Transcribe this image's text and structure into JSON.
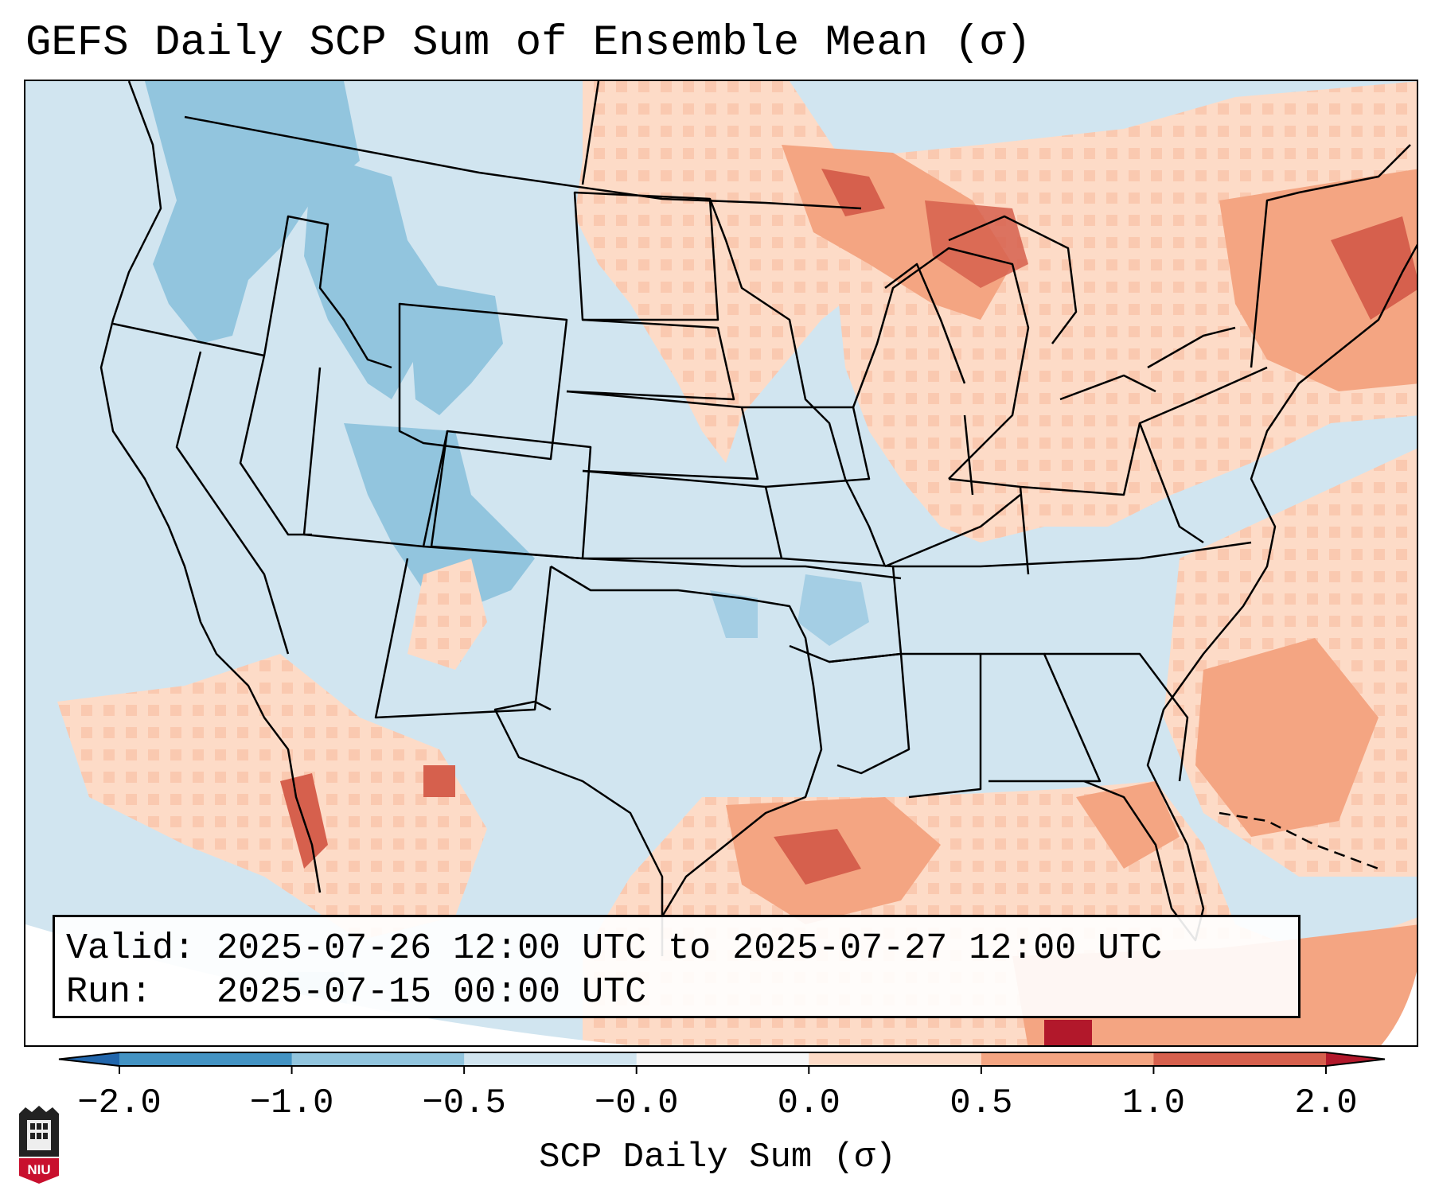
{
  "title": "GEFS Daily SCP Sum of Ensemble Mean (σ)",
  "info": {
    "valid_label": "Valid:",
    "valid_text": "2025-07-26 12:00 UTC to 2025-07-27 12:00 UTC",
    "run_label": "Run:  ",
    "run_text": "2025-07-15 00:00 UTC"
  },
  "colorbar": {
    "label": "SCP Daily Sum (σ)",
    "ticks": [
      "−2.0",
      "−1.0",
      "−0.5",
      "−0.0",
      "0.0",
      "0.5",
      "1.0",
      "2.0"
    ],
    "colors": [
      "#2166ac",
      "#4393c3",
      "#92c5de",
      "#d1e5f0",
      "#f7f7f7",
      "#fddbc7",
      "#f4a582",
      "#d6604d",
      "#b2182b"
    ]
  },
  "logo": {
    "text": "NIU",
    "icon": "niu-shield-icon"
  },
  "map": {
    "background_color": "#d1e5f0",
    "ocean_mask_color": "#ffffff",
    "regions": [
      {
        "name": "pacific-northwest",
        "value": -0.8
      },
      {
        "name": "idaho-montana",
        "value": -0.9
      },
      {
        "name": "northern-plains",
        "value": 0.5
      },
      {
        "name": "upper-midwest",
        "value": 0.6
      },
      {
        "name": "great-lakes",
        "value": 0.8
      },
      {
        "name": "northeast",
        "value": 0.9
      },
      {
        "name": "gulf-coast",
        "value": 0.7
      },
      {
        "name": "western-atlantic",
        "value": 0.6
      },
      {
        "name": "northern-mexico",
        "value": 0.4
      }
    ]
  }
}
